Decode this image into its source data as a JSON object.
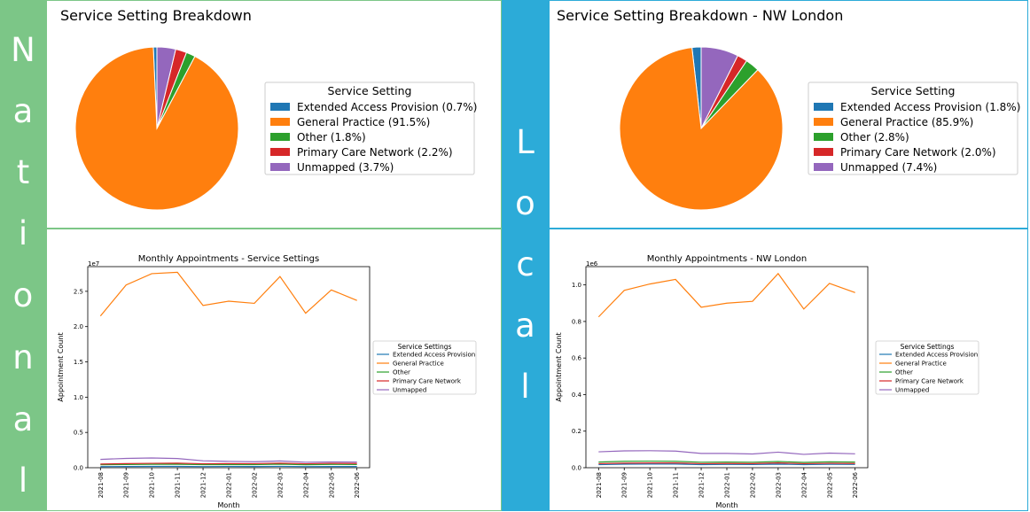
{
  "bands": {
    "national": [
      "N",
      "a",
      "t",
      "i",
      "o",
      "n",
      "a",
      "l"
    ],
    "local": [
      "L",
      "o",
      "c",
      "a",
      "l"
    ]
  },
  "colors": {
    "band_national": "#7cc687",
    "band_local": "#2cabd8",
    "series": [
      "#1f77b4",
      "#ff7f0e",
      "#2ca02c",
      "#d62728",
      "#9467bd"
    ]
  },
  "chart_data": [
    {
      "type": "pie",
      "title": "Service Setting Breakdown",
      "legend_title": "Service Setting",
      "legend_placement": "right",
      "labels": [
        "Extended Access Provision (0.7%)",
        "General Practice (91.5%)",
        "Other (1.8%)",
        "Primary Care Network (2.2%)",
        "Unmapped (3.7%)"
      ],
      "values": [
        0.7,
        91.5,
        1.8,
        2.2,
        3.7
      ]
    },
    {
      "type": "pie",
      "title": "Service Setting Breakdown - NW London",
      "legend_title": "Service Setting",
      "legend_placement": "right",
      "labels": [
        "Extended Access Provision (1.8%)",
        "General Practice (85.9%)",
        "Other (2.8%)",
        "Primary Care Network (2.0%)",
        "Unmapped (7.4%)"
      ],
      "values": [
        1.8,
        85.9,
        2.8,
        2.0,
        7.4
      ]
    },
    {
      "type": "line",
      "title": "Monthly Appointments - Service Settings",
      "xlabel": "Month",
      "ylabel": "Appointment Count",
      "scale_label": "1e7",
      "legend_title": "Service Settings",
      "legend_placement": "right",
      "x": [
        "2021-08",
        "2021-09",
        "2021-10",
        "2021-11",
        "2021-12",
        "2022-01",
        "2022-02",
        "2022-03",
        "2022-04",
        "2022-05",
        "2022-06"
      ],
      "ylim": [
        0,
        28500000
      ],
      "yticks": [
        0,
        5000000,
        10000000,
        15000000,
        20000000,
        25000000
      ],
      "ytick_labels": [
        "0.0",
        "0.5",
        "1.0",
        "1.5",
        "2.0",
        "2.5"
      ],
      "grid": false,
      "series": [
        {
          "name": "Extended Access Provision",
          "values": [
            160000,
            170000,
            185000,
            190000,
            165000,
            180000,
            175000,
            195000,
            165000,
            175000,
            170000
          ]
        },
        {
          "name": "General Practice",
          "values": [
            21500000,
            25900000,
            27500000,
            27700000,
            23000000,
            23600000,
            23300000,
            27100000,
            21900000,
            25200000,
            23700000
          ]
        },
        {
          "name": "Other",
          "values": [
            420000,
            460000,
            480000,
            485000,
            430000,
            440000,
            430000,
            500000,
            420000,
            470000,
            450000
          ]
        },
        {
          "name": "Primary Care Network",
          "values": [
            520000,
            580000,
            620000,
            640000,
            560000,
            580000,
            570000,
            640000,
            560000,
            620000,
            600000
          ]
        },
        {
          "name": "Unmapped",
          "values": [
            1180000,
            1320000,
            1380000,
            1300000,
            980000,
            900000,
            850000,
            960000,
            780000,
            820000,
            800000
          ]
        }
      ]
    },
    {
      "type": "line",
      "title": "Monthly Appointments - NW London",
      "xlabel": "Month",
      "ylabel": "Appointment Count",
      "scale_label": "1e6",
      "legend_title": "Service Settings",
      "legend_placement": "right",
      "x": [
        "2021-08",
        "2021-09",
        "2021-10",
        "2021-11",
        "2021-12",
        "2022-01",
        "2022-02",
        "2022-03",
        "2022-04",
        "2022-05",
        "2022-06"
      ],
      "ylim": [
        0,
        1100000
      ],
      "yticks": [
        0,
        200000,
        400000,
        600000,
        800000,
        1000000
      ],
      "ytick_labels": [
        "0.0",
        "0.2",
        "0.4",
        "0.6",
        "0.8",
        "1.0"
      ],
      "grid": false,
      "series": [
        {
          "name": "Extended Access Provision",
          "values": [
            17000,
            19000,
            20000,
            20000,
            17000,
            18000,
            17500,
            19500,
            17000,
            18500,
            18000
          ]
        },
        {
          "name": "General Practice",
          "values": [
            825000,
            970000,
            1005000,
            1030000,
            878000,
            900000,
            910000,
            1062000,
            868000,
            1008000,
            958000
          ]
        },
        {
          "name": "Other",
          "values": [
            31000,
            35000,
            36000,
            35000,
            30000,
            31000,
            30000,
            34000,
            29000,
            32000,
            31000
          ]
        },
        {
          "name": "Primary Care Network",
          "values": [
            22000,
            25000,
            26000,
            26000,
            22000,
            23000,
            22500,
            26000,
            22000,
            24000,
            23000
          ]
        },
        {
          "name": "Unmapped",
          "values": [
            87000,
            92000,
            93000,
            91000,
            78000,
            78000,
            75000,
            85000,
            73000,
            80000,
            76000
          ]
        }
      ]
    }
  ]
}
